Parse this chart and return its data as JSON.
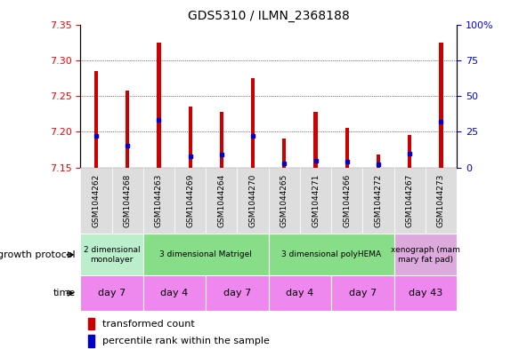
{
  "title": "GDS5310 / ILMN_2368188",
  "samples": [
    "GSM1044262",
    "GSM1044268",
    "GSM1044263",
    "GSM1044269",
    "GSM1044264",
    "GSM1044270",
    "GSM1044265",
    "GSM1044271",
    "GSM1044266",
    "GSM1044272",
    "GSM1044267",
    "GSM1044273"
  ],
  "transformed_count": [
    7.285,
    7.258,
    7.325,
    7.235,
    7.228,
    7.275,
    7.19,
    7.228,
    7.205,
    7.168,
    7.195,
    7.325
  ],
  "percentile_rank": [
    22,
    15,
    33,
    8,
    9,
    22,
    3,
    5,
    4,
    2,
    10,
    32
  ],
  "y_min": 7.15,
  "y_max": 7.35,
  "y_ticks": [
    7.15,
    7.2,
    7.25,
    7.3,
    7.35
  ],
  "y2_ticks": [
    0,
    25,
    50,
    75,
    100
  ],
  "bar_color": "#cc0000",
  "percentile_color": "#0000cc",
  "growth_protocol_groups": [
    {
      "label": "2 dimensional\nmonolayer",
      "start": 0,
      "end": 2,
      "color": "#bbeecc"
    },
    {
      "label": "3 dimensional Matrigel",
      "start": 2,
      "end": 6,
      "color": "#88dd88"
    },
    {
      "label": "3 dimensional polyHEMA",
      "start": 6,
      "end": 10,
      "color": "#88dd88"
    },
    {
      "label": "xenograph (mam\nmary fat pad)",
      "start": 10,
      "end": 12,
      "color": "#ddaadd"
    }
  ],
  "time_groups": [
    {
      "label": "day 7",
      "start": 0,
      "end": 2,
      "color": "#ee88ee"
    },
    {
      "label": "day 4",
      "start": 2,
      "end": 4,
      "color": "#ee88ee"
    },
    {
      "label": "day 7",
      "start": 4,
      "end": 6,
      "color": "#ee88ee"
    },
    {
      "label": "day 4",
      "start": 6,
      "end": 8,
      "color": "#ee88ee"
    },
    {
      "label": "day 7",
      "start": 8,
      "end": 10,
      "color": "#ee88ee"
    },
    {
      "label": "day 43",
      "start": 10,
      "end": 12,
      "color": "#ee88ee"
    }
  ],
  "legend_items": [
    {
      "label": "transformed count",
      "color": "#cc0000"
    },
    {
      "label": "percentile rank within the sample",
      "color": "#0000cc"
    }
  ],
  "xlabel_growth": "growth protocol",
  "xlabel_time": "time",
  "bar_width": 0.12
}
